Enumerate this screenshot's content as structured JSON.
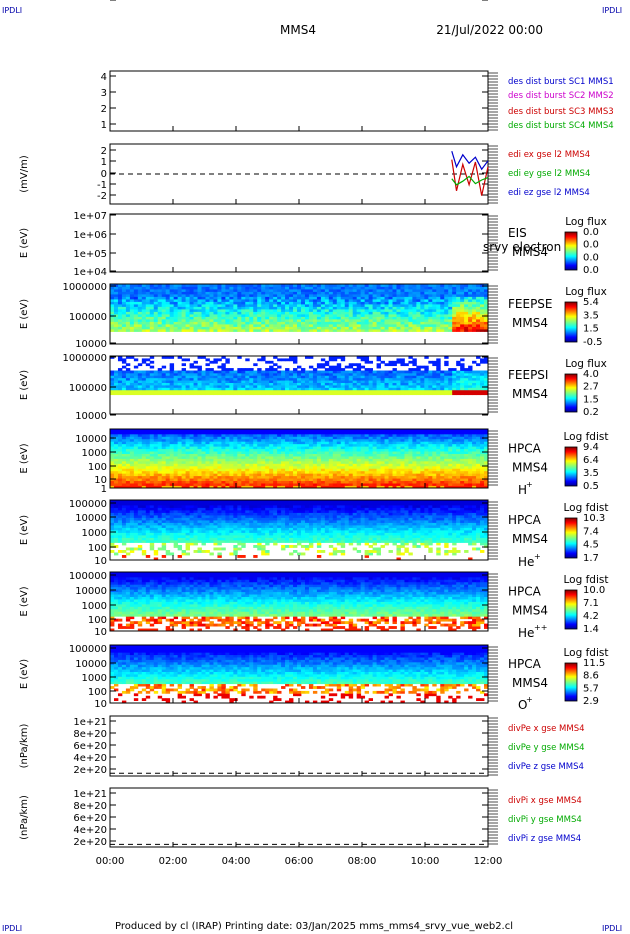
{
  "corner_labels": [
    "IPDLI",
    "IPDLI",
    "IPDLI",
    "IPDLI"
  ],
  "header": {
    "spacecraft": "MMS4",
    "date": "21/Jul/2022 00:00"
  },
  "footer": "Produced by cl (IRAP)    Printing date: 03/Jan/2025    mms_mms4_srvy_vue_web2.cl",
  "colors": {
    "mms1": "#0000cc",
    "mms2": "#cc00cc",
    "mms3": "#cc0000",
    "mms4": "#00aa00",
    "x": "#cc0000",
    "y": "#00aa00",
    "z": "#0000cc",
    "frame": "#000000"
  },
  "chart_data": [
    {
      "type": "line",
      "panel": "dist-burst",
      "ylabel": "",
      "ylim": [
        0.5,
        4.5
      ],
      "yticks": [
        "1",
        "2",
        "3",
        "4"
      ],
      "xlim": [
        "00:00",
        "12:00"
      ],
      "legend": [
        {
          "text": "des dist burst SC1 MMS1",
          "color": "mms1"
        },
        {
          "text": "des dist burst SC2 MMS2",
          "color": "mms2"
        },
        {
          "text": "des dist burst SC3 MMS3",
          "color": "mms3"
        },
        {
          "text": "des dist burst SC4 MMS4",
          "color": "mms4"
        }
      ],
      "series": []
    },
    {
      "type": "line",
      "panel": "edi-e",
      "ylabel": "(mV/m)",
      "ylim": [
        -2.5,
        2.5
      ],
      "yticks": [
        "2",
        "1",
        "0",
        "-1",
        "-2"
      ],
      "xlim": [
        "00:00",
        "12:00"
      ],
      "zero_line": true,
      "legend": [
        {
          "text": "edi ex gse l2 MMS4",
          "color": "x"
        },
        {
          "text": "edi ey gse l2 MMS4",
          "color": "y"
        },
        {
          "text": "edi ez gse l2 MMS4",
          "color": "z"
        }
      ],
      "series": [
        {
          "name": "edi ex gse l2 MMS4",
          "x": [
            10.85,
            11.0,
            11.2,
            11.4,
            11.6,
            11.8,
            12.0
          ],
          "y": [
            1.2,
            -1.4,
            0.8,
            -0.9,
            1.0,
            -1.8,
            0.6
          ]
        },
        {
          "name": "edi ey gse l2 MMS4",
          "x": [
            10.85,
            11.0,
            11.2,
            11.4,
            11.6,
            11.8,
            12.0
          ],
          "y": [
            -0.4,
            -0.9,
            -0.6,
            -0.2,
            -0.8,
            -0.5,
            -0.3
          ]
        },
        {
          "name": "edi ez gse l2 MMS4",
          "x": [
            10.85,
            11.0,
            11.2,
            11.4,
            11.6,
            11.8,
            12.0
          ],
          "y": [
            1.9,
            0.6,
            1.6,
            0.9,
            1.4,
            0.4,
            1.1
          ]
        }
      ]
    },
    {
      "type": "heatmap",
      "panel": "eis",
      "ylabel": "E (eV)",
      "yscale": "log",
      "ylim": [
        10000,
        10000000
      ],
      "yticks": [
        "1e+07",
        "1e+06",
        "1e+05",
        "1e+04"
      ],
      "instrument": "EIS",
      "instrument_sub": "MMS4",
      "overlay_text": "srvy electron to",
      "colorbar": {
        "title": "Log flux",
        "ticks": [
          "0.0",
          "0.0",
          "0.0",
          "0.0"
        ]
      },
      "empty": true
    },
    {
      "type": "heatmap",
      "panel": "feepse",
      "ylabel": "E (eV)",
      "yscale": "log",
      "ylim": [
        10000,
        1000000
      ],
      "yticks": [
        "1000000",
        "100000",
        "10000"
      ],
      "instrument": "FEEPSE",
      "instrument_sub": "MMS4",
      "colorbar": {
        "title": "Log flux",
        "ticks": [
          "5.4",
          "3.5",
          "1.5",
          "-0.5"
        ]
      }
    },
    {
      "type": "heatmap",
      "panel": "feepsi",
      "ylabel": "E (eV)",
      "yscale": "log",
      "ylim": [
        10000,
        1000000
      ],
      "yticks": [
        "1000000",
        "100000",
        "10000"
      ],
      "instrument": "FEEPSI",
      "instrument_sub": "MMS4",
      "colorbar": {
        "title": "Log flux",
        "ticks": [
          "4.0",
          "2.7",
          "1.5",
          "0.2"
        ]
      }
    },
    {
      "type": "heatmap",
      "panel": "hpca-h",
      "ylabel": "E (eV)",
      "yscale": "log",
      "ylim": [
        1,
        20000
      ],
      "yticks": [
        "10000",
        "1000",
        "100",
        "10",
        "1"
      ],
      "instrument": "HPCA",
      "instrument_sub": "MMS4",
      "species": "H",
      "species_sup": "+",
      "colorbar": {
        "title": "Log fdist",
        "ticks": [
          "9.4",
          "6.4",
          "3.5",
          "0.5"
        ]
      }
    },
    {
      "type": "heatmap",
      "panel": "hpca-he",
      "ylabel": "E (eV)",
      "yscale": "log",
      "ylim": [
        1,
        100000
      ],
      "yticks": [
        "100000",
        "10000",
        "1000",
        "100",
        "10",
        "1"
      ],
      "instrument": "HPCA",
      "instrument_sub": "MMS4",
      "species": "He",
      "species_sup": "+",
      "colorbar": {
        "title": "Log fdist",
        "ticks": [
          "10.3",
          "7.4",
          "4.5",
          "1.7"
        ]
      }
    },
    {
      "type": "heatmap",
      "panel": "hpca-hepp",
      "ylabel": "E (eV)",
      "yscale": "log",
      "ylim": [
        1,
        100000
      ],
      "yticks": [
        "100000",
        "10000",
        "1000",
        "100",
        "10",
        "1"
      ],
      "instrument": "HPCA",
      "instrument_sub": "MMS4",
      "species": "He",
      "species_sup": "++",
      "colorbar": {
        "title": "Log fdist",
        "ticks": [
          "10.0",
          "7.1",
          "4.2",
          "1.4"
        ]
      }
    },
    {
      "type": "heatmap",
      "panel": "hpca-o",
      "ylabel": "E (eV)",
      "yscale": "log",
      "ylim": [
        1,
        100000
      ],
      "yticks": [
        "100000",
        "10000",
        "1000",
        "100",
        "10",
        "1"
      ],
      "instrument": "HPCA",
      "instrument_sub": "MMS4",
      "species": "O",
      "species_sup": "+",
      "colorbar": {
        "title": "Log fdist",
        "ticks": [
          "11.5",
          "8.6",
          "5.7",
          "2.9"
        ]
      }
    },
    {
      "type": "line",
      "panel": "divpe",
      "ylabel": "(nPa/km)",
      "ylim": [
        -5e+19,
        1.05e+21
      ],
      "yticks": [
        "1e+21",
        "8e+20",
        "6e+20",
        "4e+20",
        "2e+20",
        "0"
      ],
      "zero_line": true,
      "legend": [
        {
          "text": "divPe x gse MMS4",
          "color": "x"
        },
        {
          "text": "divPe y gse MMS4",
          "color": "y"
        },
        {
          "text": "divPe z gse MMS4",
          "color": "z"
        }
      ],
      "series": []
    },
    {
      "type": "line",
      "panel": "divpi",
      "ylabel": "(nPa/km)",
      "ylim": [
        -5e+19,
        1.05e+21
      ],
      "yticks": [
        "1e+21",
        "8e+20",
        "6e+20",
        "4e+20",
        "2e+20",
        "0"
      ],
      "zero_line": true,
      "legend": [
        {
          "text": "divPi x gse MMS4",
          "color": "x"
        },
        {
          "text": "divPi y gse MMS4",
          "color": "y"
        },
        {
          "text": "divPi z gse MMS4",
          "color": "z"
        }
      ],
      "series": []
    }
  ],
  "xaxis": {
    "ticks": [
      "00:00",
      "02:00",
      "04:00",
      "06:00",
      "08:00",
      "10:00",
      "12:00"
    ]
  }
}
